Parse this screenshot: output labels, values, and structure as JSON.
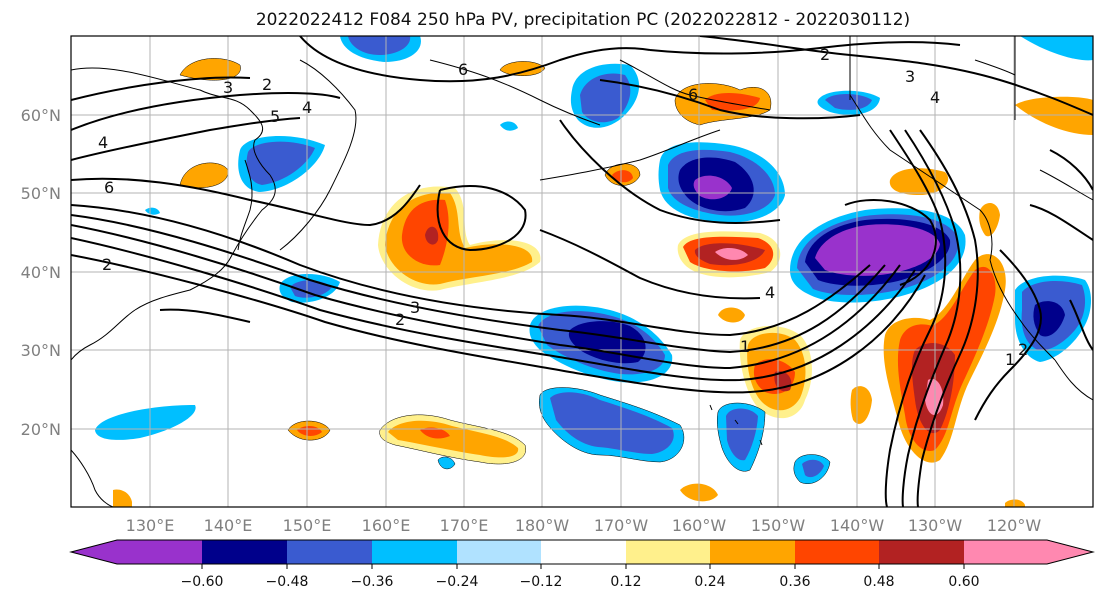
{
  "title": "2022022412 F084 250 hPa PV, precipitation PC (2022022812 - 2022030112)",
  "map": {
    "lon_ticks": [
      "130°E",
      "140°E",
      "150°E",
      "160°E",
      "170°E",
      "180°W",
      "170°W",
      "160°W",
      "150°W",
      "140°W",
      "130°W",
      "120°W"
    ],
    "lat_ticks": [
      "60°N",
      "50°N",
      "40°N",
      "30°N",
      "20°N"
    ],
    "grid": true,
    "contour_labels": [
      "2",
      "3",
      "4",
      "5",
      "6",
      "2",
      "4",
      "6",
      "1",
      "2",
      "3",
      "4",
      "2",
      "6",
      "3",
      "4",
      "1",
      "2"
    ]
  },
  "colorbar": {
    "ticks": [
      "−0.60",
      "−0.48",
      "−0.36",
      "−0.24",
      "−0.12",
      "0.12",
      "0.24",
      "0.36",
      "0.48",
      "0.60"
    ],
    "colors": {
      "lt_m060": "#9932cc",
      "m060_m048": "#00008b",
      "m048_m036": "#3a5bd0",
      "m036_m024": "#00bfff",
      "m024_m012": "#b0e2ff",
      "m012_012": "#ffffff",
      "p012_024": "#fff08c",
      "p024_036": "#ffa500",
      "p036_048": "#ff4500",
      "p048_060": "#b22222",
      "gt_060": "#ff88b0"
    }
  }
}
